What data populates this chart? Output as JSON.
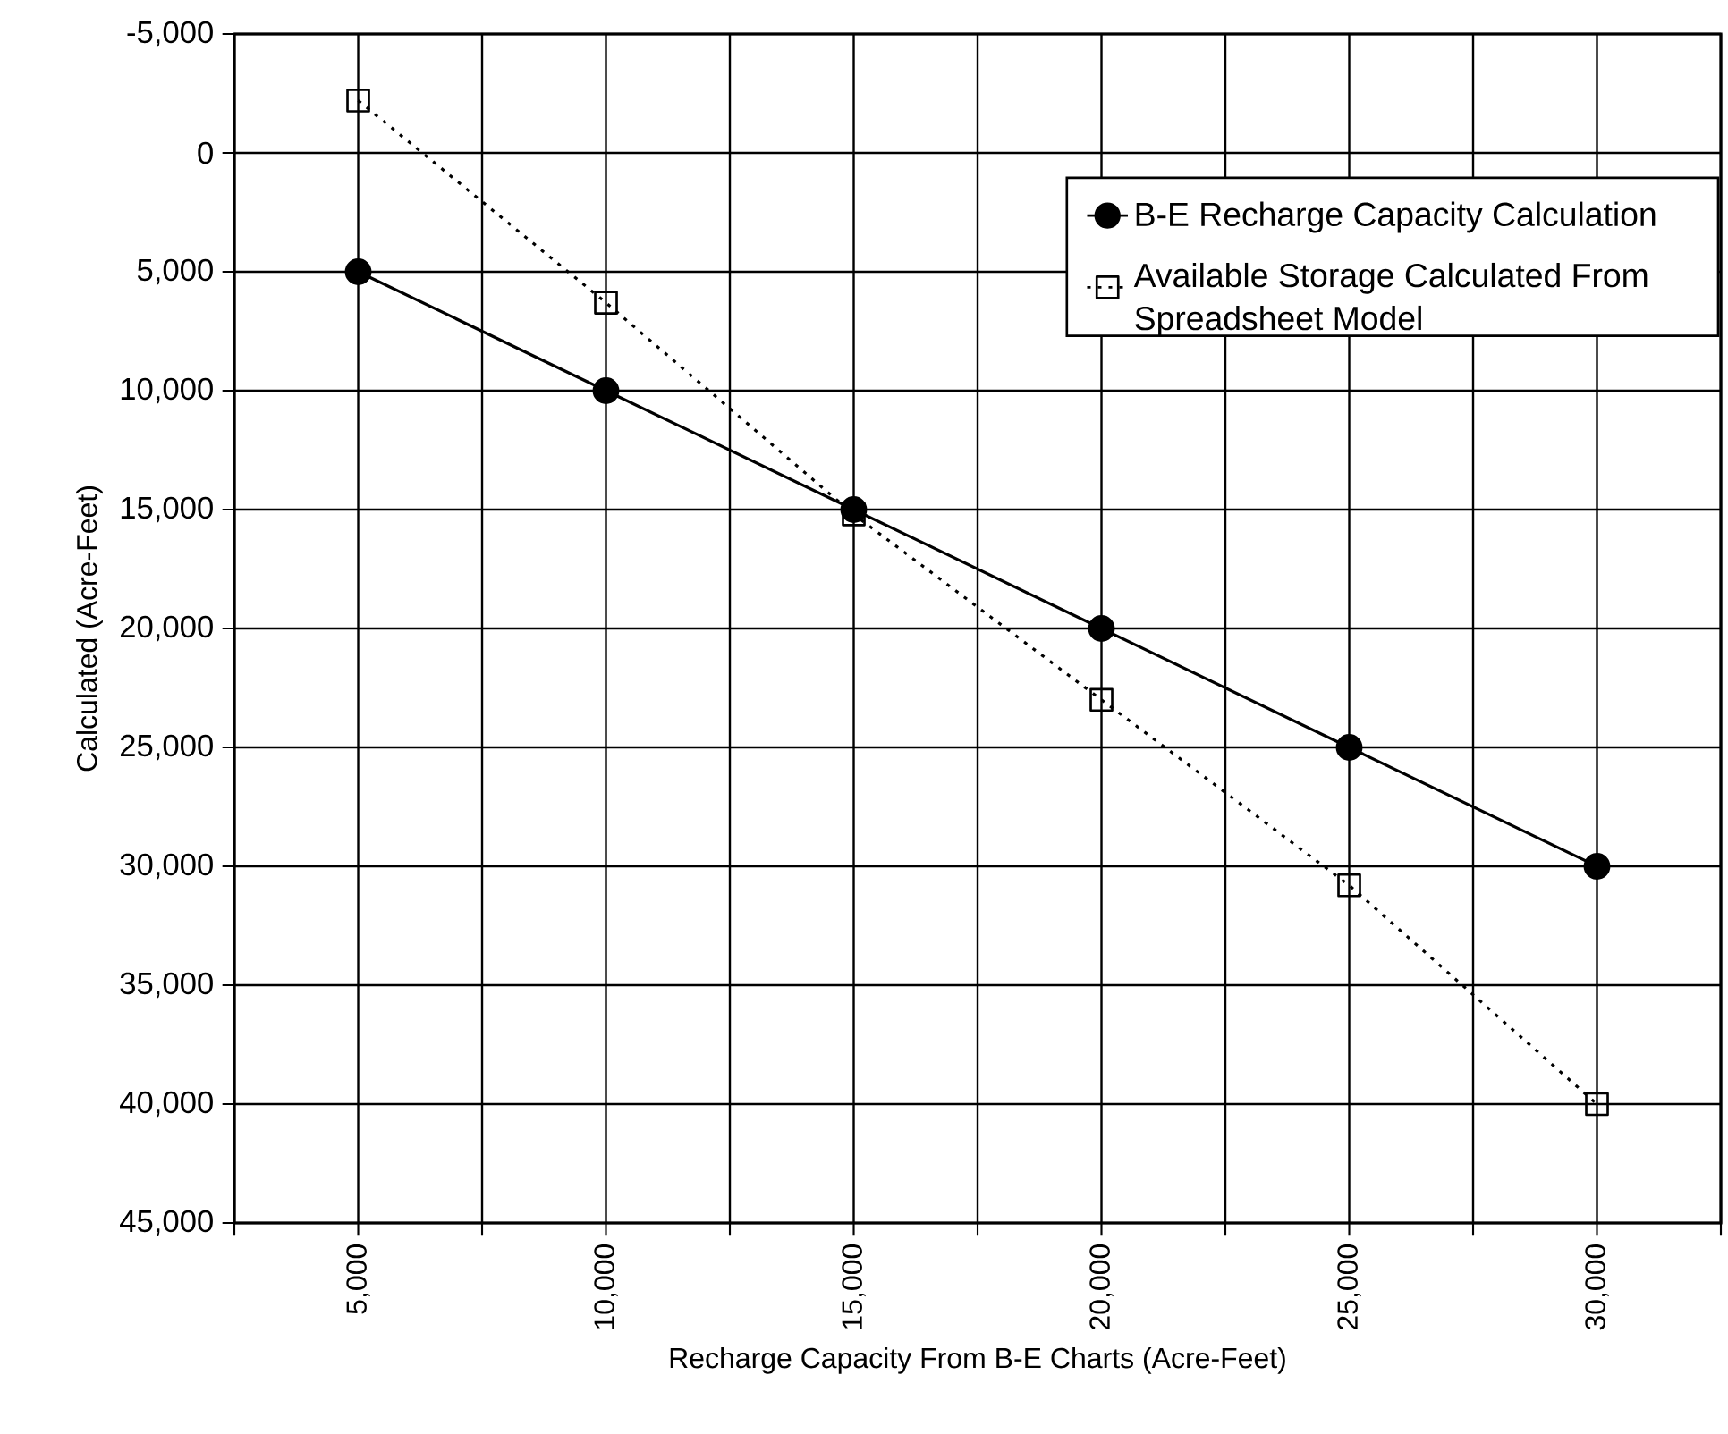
{
  "chart_data": {
    "type": "line",
    "xlabel": "Recharge Capacity From B-E Charts (Acre-Feet)",
    "ylabel": "Calculated (Acre-Feet)",
    "x": [
      5000,
      10000,
      15000,
      20000,
      25000,
      30000
    ],
    "series": [
      {
        "name": "B-E Recharge Capacity Calculation",
        "color": "#000000",
        "marker": "circle",
        "line_style": "solid",
        "values": [
          5000,
          10000,
          15000,
          20000,
          25000,
          30000
        ]
      },
      {
        "name": "Available Storage Calculated From Spreadsheet Model",
        "color": "#000000",
        "marker": "square",
        "line_style": "dotted",
        "values": [
          -2200,
          6300,
          15200,
          23000,
          30800,
          40000
        ]
      }
    ],
    "xlim": [
      2500,
      32500
    ],
    "xticks": [
      {
        "value": 2500,
        "label": null
      },
      {
        "value": 5000,
        "label": "5,000"
      },
      {
        "value": 7500,
        "label": null
      },
      {
        "value": 10000,
        "label": "10,000"
      },
      {
        "value": 12500,
        "label": null
      },
      {
        "value": 15000,
        "label": "15,000"
      },
      {
        "value": 17500,
        "label": null
      },
      {
        "value": 20000,
        "label": "20,000"
      },
      {
        "value": 22500,
        "label": null
      },
      {
        "value": 25000,
        "label": "25,000"
      },
      {
        "value": 27500,
        "label": null
      },
      {
        "value": 30000,
        "label": "30,000"
      },
      {
        "value": 32500,
        "label": null
      }
    ],
    "ylim": [
      45000,
      -5000
    ],
    "yticks": [
      {
        "value": -5000,
        "label": "-5,000"
      },
      {
        "value": 0,
        "label": "0"
      },
      {
        "value": 5000,
        "label": "5,000"
      },
      {
        "value": 10000,
        "label": "10,000"
      },
      {
        "value": 15000,
        "label": "15,000"
      },
      {
        "value": 20000,
        "label": "20,000"
      },
      {
        "value": 25000,
        "label": "25,000"
      },
      {
        "value": 30000,
        "label": "30,000"
      },
      {
        "value": 35000,
        "label": "35,000"
      },
      {
        "value": 40000,
        "label": "40,000"
      },
      {
        "value": 45000,
        "label": "45,000"
      }
    ],
    "grid": true,
    "legend": "top right"
  }
}
